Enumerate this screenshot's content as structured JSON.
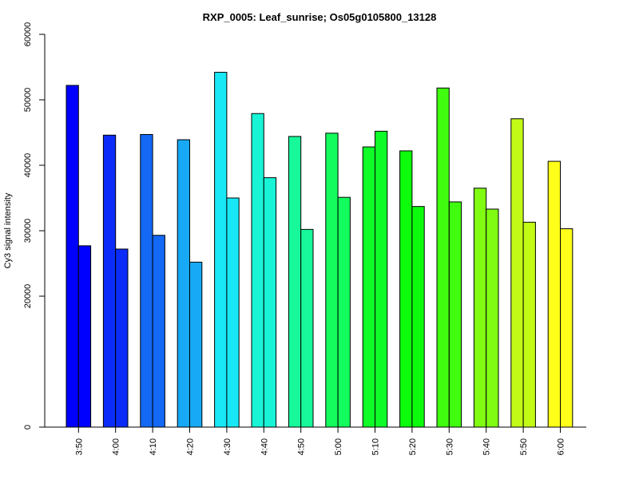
{
  "chart_data": {
    "type": "bar",
    "title": "RXP_0005: Leaf_sunrise; Os05g0105800_13128",
    "xlabel": "",
    "ylabel": "Cy3 signal intensity",
    "ylim": [
      0,
      60000
    ],
    "y_ticks": [
      0,
      20000,
      30000,
      40000,
      50000,
      60000
    ],
    "y_scale": "broken: linear 0 to 20000 compressed, then linear 20000 to 60000",
    "categories": [
      "3:50",
      "4:00",
      "4:10",
      "4:20",
      "4:30",
      "4:40",
      "4:50",
      "5:00",
      "5:10",
      "5:20",
      "5:30",
      "5:40",
      "5:50",
      "6:00"
    ],
    "bars_per_category": 2,
    "values": [
      [
        52200,
        27700
      ],
      [
        44600,
        27200
      ],
      [
        44700,
        29300
      ],
      [
        43900,
        25200
      ],
      [
        54200,
        35000
      ],
      [
        47900,
        38100
      ],
      [
        44400,
        30200
      ],
      [
        44900,
        35100
      ],
      [
        42800,
        45200
      ],
      [
        42200,
        33700
      ],
      [
        51800,
        34400
      ],
      [
        36500,
        33300
      ],
      [
        47100,
        31300
      ],
      [
        40600,
        30300
      ]
    ],
    "colors": [
      "#0000FF",
      "#0B2CF8",
      "#1368F4",
      "#17A9F5",
      "#18E8F5",
      "#18F4D5",
      "#16F899",
      "#13FB5C",
      "#0FFC29",
      "#0DFC0C",
      "#40FC0F",
      "#80FC13",
      "#C2FC16",
      "#FFFF1A"
    ],
    "grid": false,
    "legend": "none"
  }
}
